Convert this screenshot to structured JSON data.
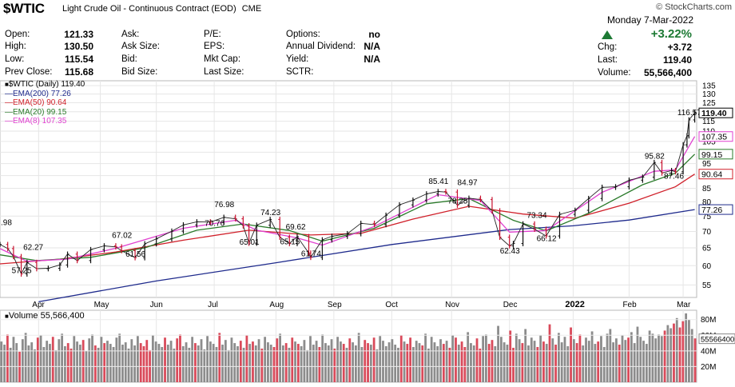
{
  "header": {
    "symbol": "$WTIC",
    "description": "Light Crude Oil - Continuous Contract (EOD)",
    "exchange": "CME",
    "source": "© StockCharts.com",
    "date": "Monday  7-Mar-2022",
    "change_pct": "+3.22%",
    "accent_up": "#1d7a34"
  },
  "quote": {
    "open_label": "Open:",
    "open": "121.33",
    "high_label": "High:",
    "high": "130.50",
    "low_label": "Low:",
    "low": "115.54",
    "prev_label": "Prev Close:",
    "prev": "115.68",
    "ask_label": "Ask:",
    "ask": "",
    "asksize_label": "Ask Size:",
    "asksize": "",
    "bid_label": "Bid:",
    "bid": "",
    "bidsize_label": "Bid Size:",
    "bidsize": "",
    "pe_label": "P/E:",
    "eps_label": "EPS:",
    "mktcap_label": "Mkt Cap:",
    "lastsize_label": "Last Size:",
    "options_label": "Options:",
    "options": "no",
    "div_label": "Annual Dividend:",
    "div": "N/A",
    "yield_label": "Yield:",
    "yield": "N/A",
    "sctr_label": "SCTR:",
    "chg_label": "Chg:",
    "chg": "+3.72",
    "last_label": "Last:",
    "last": "119.40",
    "volume_label": "Volume:",
    "volume": "55,566,400"
  },
  "legend": {
    "price": "$WTIC (Daily) 119.40",
    "ema200": "EMA(200) 77.26",
    "ema50": "EMA(50) 90.64",
    "ema20": "EMA(20) 99.15",
    "ema8": "EMA(8) 107.35",
    "volume": "Volume 55,566,400"
  },
  "chart_data": {
    "type": "line",
    "title": "$WTIC (Daily) 119.40",
    "y_scale": "log",
    "ylim": [
      52,
      138
    ],
    "y_ticks": [
      55,
      60,
      65,
      70,
      75,
      80,
      85,
      90,
      95,
      100,
      105,
      110,
      115,
      120,
      125,
      130,
      135
    ],
    "x_ticks": [
      {
        "label": "Apr",
        "date": "2021-04-01"
      },
      {
        "label": "May",
        "date": "2021-05-03"
      },
      {
        "label": "Jun",
        "date": "2021-06-01"
      },
      {
        "label": "Jul",
        "date": "2021-07-01"
      },
      {
        "label": "Aug",
        "date": "2021-08-02"
      },
      {
        "label": "Sep",
        "date": "2021-09-01"
      },
      {
        "label": "Oct",
        "date": "2021-10-01"
      },
      {
        "label": "Nov",
        "date": "2021-11-01"
      },
      {
        "label": "Dec",
        "date": "2021-12-01"
      },
      {
        "label": "2022",
        "date": "2022-01-03"
      },
      {
        "label": "Feb",
        "date": "2022-02-01"
      },
      {
        "label": "Mar",
        "date": "2022-03-01"
      }
    ],
    "x_range": [
      "2021-03-12",
      "2022-03-08"
    ],
    "price_series": {
      "name": "$WTIC",
      "points": [
        [
          "2021-03-12",
          66.0
        ],
        [
          "2021-03-16",
          64.8
        ],
        [
          "2021-03-19",
          62.5
        ],
        [
          "2021-03-23",
          57.8
        ],
        [
          "2021-03-26",
          60.9
        ],
        [
          "2021-03-31",
          59.2
        ],
        [
          "2021-04-06",
          59.3
        ],
        [
          "2021-04-12",
          60.2
        ],
        [
          "2021-04-16",
          63.2
        ],
        [
          "2021-04-21",
          61.4
        ],
        [
          "2021-04-28",
          64.5
        ],
        [
          "2021-05-05",
          65.6
        ],
        [
          "2021-05-11",
          65.3
        ],
        [
          "2021-05-14",
          64.2
        ],
        [
          "2021-05-21",
          62.2
        ],
        [
          "2021-05-26",
          66.2
        ],
        [
          "2021-06-01",
          67.7
        ],
        [
          "2021-06-09",
          70.1
        ],
        [
          "2021-06-15",
          72.1
        ],
        [
          "2021-06-22",
          73.1
        ],
        [
          "2021-06-29",
          73.0
        ],
        [
          "2021-07-06",
          74.6
        ],
        [
          "2021-07-12",
          74.1
        ],
        [
          "2021-07-16",
          71.8
        ],
        [
          "2021-07-19",
          66.4
        ],
        [
          "2021-07-23",
          72.0
        ],
        [
          "2021-07-30",
          73.9
        ],
        [
          "2021-08-04",
          68.2
        ],
        [
          "2021-08-09",
          66.3
        ],
        [
          "2021-08-13",
          68.4
        ],
        [
          "2021-08-19",
          63.5
        ],
        [
          "2021-08-20",
          62.3
        ],
        [
          "2021-08-26",
          67.4
        ],
        [
          "2021-08-31",
          68.5
        ],
        [
          "2021-09-08",
          69.3
        ],
        [
          "2021-09-15",
          72.6
        ],
        [
          "2021-09-22",
          72.2
        ],
        [
          "2021-09-28",
          75.3
        ],
        [
          "2021-10-05",
          78.9
        ],
        [
          "2021-10-12",
          80.6
        ],
        [
          "2021-10-19",
          82.9
        ],
        [
          "2021-10-25",
          83.8
        ],
        [
          "2021-10-29",
          83.6
        ],
        [
          "2021-11-04",
          78.8
        ],
        [
          "2021-11-10",
          81.3
        ],
        [
          "2021-11-16",
          80.8
        ],
        [
          "2021-11-22",
          76.8
        ],
        [
          "2021-11-26",
          68.2
        ],
        [
          "2021-12-01",
          65.6
        ],
        [
          "2021-12-03",
          66.3
        ],
        [
          "2021-12-08",
          72.4
        ],
        [
          "2021-12-14",
          70.7
        ],
        [
          "2021-12-20",
          68.6
        ],
        [
          "2021-12-27",
          75.6
        ],
        [
          "2022-01-04",
          77.0
        ],
        [
          "2022-01-11",
          81.2
        ],
        [
          "2022-01-18",
          85.4
        ],
        [
          "2022-01-25",
          85.6
        ],
        [
          "2022-02-01",
          88.2
        ],
        [
          "2022-02-08",
          89.4
        ],
        [
          "2022-02-14",
          95.5
        ],
        [
          "2022-02-18",
          91.1
        ],
        [
          "2022-02-23",
          92.1
        ],
        [
          "2022-02-25",
          91.6
        ],
        [
          "2022-03-01",
          103.4
        ],
        [
          "2022-03-03",
          107.7
        ],
        [
          "2022-03-04",
          115.7
        ],
        [
          "2022-03-07",
          119.4
        ]
      ]
    },
    "series": [
      {
        "name": "EMA(200)",
        "color": "#1e2a8c",
        "last": 77.26,
        "points": [
          [
            "2021-04-01",
            51.0
          ],
          [
            "2021-06-01",
            56.0
          ],
          [
            "2021-08-02",
            60.8
          ],
          [
            "2021-10-01",
            66.0
          ],
          [
            "2021-12-01",
            70.6
          ],
          [
            "2022-01-03",
            71.8
          ],
          [
            "2022-02-01",
            73.7
          ],
          [
            "2022-03-07",
            77.26
          ]
        ]
      },
      {
        "name": "EMA(50)",
        "color": "#d0202a",
        "last": 90.64,
        "points": [
          [
            "2021-03-12",
            60.5
          ],
          [
            "2021-04-12",
            61.8
          ],
          [
            "2021-05-11",
            63.8
          ],
          [
            "2021-06-15",
            67.3
          ],
          [
            "2021-07-19",
            70.4
          ],
          [
            "2021-08-20",
            68.9
          ],
          [
            "2021-09-15",
            69.4
          ],
          [
            "2021-10-12",
            74.0
          ],
          [
            "2021-11-10",
            78.4
          ],
          [
            "2021-12-08",
            75.7
          ],
          [
            "2022-01-04",
            74.3
          ],
          [
            "2022-02-01",
            79.5
          ],
          [
            "2022-02-25",
            85.6
          ],
          [
            "2022-03-07",
            90.64
          ]
        ]
      },
      {
        "name": "EMA(20)",
        "color": "#2a7a2a",
        "last": 99.15,
        "points": [
          [
            "2021-03-12",
            63.0
          ],
          [
            "2021-03-31",
            61.4
          ],
          [
            "2021-04-28",
            62.3
          ],
          [
            "2021-05-26",
            65.0
          ],
          [
            "2021-06-22",
            70.4
          ],
          [
            "2021-07-16",
            72.4
          ],
          [
            "2021-08-09",
            70.3
          ],
          [
            "2021-08-26",
            67.0
          ],
          [
            "2021-09-22",
            71.0
          ],
          [
            "2021-10-19",
            79.3
          ],
          [
            "2021-11-10",
            81.2
          ],
          [
            "2021-12-03",
            73.6
          ],
          [
            "2021-12-20",
            70.2
          ],
          [
            "2022-01-11",
            76.0
          ],
          [
            "2022-02-08",
            86.4
          ],
          [
            "2022-02-25",
            91.0
          ],
          [
            "2022-03-07",
            99.15
          ]
        ]
      },
      {
        "name": "EMA(8)",
        "color": "#e040d0",
        "last": 107.35,
        "points": [
          [
            "2021-03-12",
            64.8
          ],
          [
            "2021-03-26",
            61.2
          ],
          [
            "2021-04-16",
            61.8
          ],
          [
            "2021-05-11",
            64.9
          ],
          [
            "2021-06-15",
            71.0
          ],
          [
            "2021-07-12",
            73.6
          ],
          [
            "2021-07-23",
            70.4
          ],
          [
            "2021-08-13",
            68.0
          ],
          [
            "2021-08-26",
            65.8
          ],
          [
            "2021-09-22",
            71.6
          ],
          [
            "2021-10-25",
            82.6
          ],
          [
            "2021-11-16",
            80.5
          ],
          [
            "2021-12-01",
            69.8
          ],
          [
            "2021-12-20",
            70.3
          ],
          [
            "2022-01-18",
            83.5
          ],
          [
            "2022-02-14",
            91.8
          ],
          [
            "2022-02-25",
            92.4
          ],
          [
            "2022-03-07",
            107.35
          ]
        ]
      }
    ],
    "annotations": [
      {
        "text": ".98",
        "date": "2021-03-12",
        "price": 71.0
      },
      {
        "text": "62.27",
        "date": "2021-03-29",
        "price": 63.5
      },
      {
        "text": "57.25",
        "date": "2021-03-23",
        "price": 57.25
      },
      {
        "text": "67.02",
        "date": "2021-05-14",
        "price": 67.02
      },
      {
        "text": "61.56",
        "date": "2021-05-21",
        "price": 61.56
      },
      {
        "text": "76.98",
        "date": "2021-07-06",
        "price": 76.98
      },
      {
        "text": "70.76",
        "date": "2021-07-01",
        "price": 70.76
      },
      {
        "text": "65.01",
        "date": "2021-07-19",
        "price": 65.01
      },
      {
        "text": "74.23",
        "date": "2021-07-30",
        "price": 74.23
      },
      {
        "text": "69.62",
        "date": "2021-08-12",
        "price": 69.62
      },
      {
        "text": "65.15",
        "date": "2021-08-09",
        "price": 65.15
      },
      {
        "text": "61.74",
        "date": "2021-08-20",
        "price": 61.74
      },
      {
        "text": "85.41",
        "date": "2021-10-25",
        "price": 85.41
      },
      {
        "text": "84.97",
        "date": "2021-11-09",
        "price": 84.97
      },
      {
        "text": "78.25",
        "date": "2021-11-04",
        "price": 78.25
      },
      {
        "text": "73.34",
        "date": "2021-12-15",
        "price": 73.34
      },
      {
        "text": "62.43",
        "date": "2021-12-01",
        "price": 62.43
      },
      {
        "text": "66.12",
        "date": "2021-12-20",
        "price": 66.12
      },
      {
        "text": "95.82",
        "date": "2022-02-14",
        "price": 95.82
      },
      {
        "text": "87.46",
        "date": "2022-02-24",
        "price": 87.46
      },
      {
        "text": "116.57",
        "date": "2022-03-03",
        "price": 116.57
      }
    ],
    "right_labels": [
      {
        "text": "119.40",
        "value": 119.4,
        "color": "#000000"
      },
      {
        "text": "107.35",
        "value": 107.35,
        "color": "#e040d0"
      },
      {
        "text": "99.15",
        "value": 99.15,
        "color": "#2a7a2a"
      },
      {
        "text": "90.64",
        "value": 90.64,
        "color": "#d0202a"
      },
      {
        "text": "77.26",
        "value": 77.26,
        "color": "#1e2a8c"
      }
    ],
    "volume": {
      "name": "Volume",
      "last": 55566400,
      "ylim": [
        0,
        92000000
      ],
      "y_ticks": [
        20000000,
        40000000,
        60000000,
        80000000
      ],
      "y_tick_labels": [
        "20M",
        "40M",
        "60M",
        "80M"
      ],
      "last_label": "55566400",
      "up_color": "#8c8c8c",
      "down_color": "#d94a5a",
      "bars_millions": [
        52,
        48,
        61,
        44,
        58,
        50,
        39,
        55,
        63,
        47,
        51,
        42,
        57,
        60,
        45,
        53,
        49,
        58,
        41,
        55,
        62,
        46,
        50,
        43,
        59,
        52,
        48,
        54,
        40,
        56,
        61,
        47,
        44,
        58,
        50,
        53,
        49,
        45,
        57,
        62,
        48,
        51,
        43,
        55,
        47,
        59,
        50,
        46,
        54,
        41,
        60,
        52,
        49,
        45,
        57,
        48,
        53,
        43,
        56,
        61,
        46,
        51,
        44,
        58,
        50,
        47,
        55,
        42,
        59,
        52,
        49,
        45,
        63,
        48,
        54,
        41,
        57,
        50,
        46,
        53,
        44,
        60,
        49,
        52,
        47,
        55,
        43,
        58,
        51,
        48,
        45,
        56,
        62,
        47,
        50,
        44,
        57,
        52,
        49,
        46,
        54,
        41,
        59,
        48,
        53,
        45,
        61,
        50,
        47,
        55,
        43,
        58,
        52,
        49,
        44,
        56,
        51,
        47,
        63,
        45,
        54,
        50,
        48,
        57,
        42,
        59,
        53,
        46,
        51,
        55,
        48,
        44,
        60,
        52,
        49,
        57,
        45,
        53,
        50,
        47,
        62,
        43,
        58,
        51,
        46,
        55,
        49,
        53,
        44,
        60,
        57,
        48,
        52,
        45,
        64,
        50,
        47,
        56,
        43,
        59,
        61,
        49,
        54,
        46,
        72,
        58,
        51,
        48,
        66,
        44,
        62,
        55,
        50,
        68,
        47,
        57,
        53,
        45,
        60,
        52,
        49,
        74,
        56,
        48,
        63,
        51,
        58,
        46,
        70,
        55,
        50,
        61,
        47,
        57,
        53,
        65,
        49,
        52,
        59,
        45,
        62,
        68,
        51,
        56,
        48,
        60,
        54,
        57,
        64,
        50,
        71,
        58,
        53,
        49,
        66,
        62,
        56,
        61,
        59,
        66,
        73,
        69,
        75,
        82,
        70,
        78,
        88,
        80,
        68,
        56
      ]
    }
  }
}
